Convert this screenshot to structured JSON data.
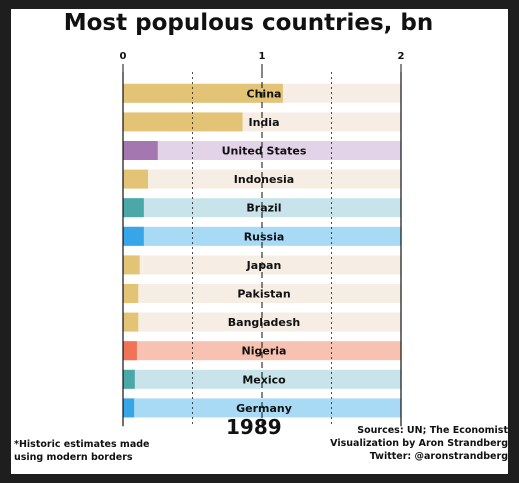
{
  "chart_data": {
    "type": "bar",
    "title": "Most populous countries, bn",
    "xlim": [
      0,
      2
    ],
    "x_ticks": [
      "0",
      "1",
      "2"
    ],
    "orientation": "horizontal",
    "categories": [
      "China",
      "India",
      "United States",
      "Indonesia",
      "Brazil",
      "Russia",
      "Japan",
      "Pakistan",
      "Bangladesh",
      "Nigeria",
      "Mexico",
      "Germany"
    ],
    "values": [
      1.15,
      0.86,
      0.25,
      0.18,
      0.15,
      0.15,
      0.12,
      0.11,
      0.11,
      0.1,
      0.085,
      0.08
    ],
    "colors": [
      "#e3c476",
      "#e3c476",
      "#a577b0",
      "#e3c476",
      "#4aa8a8",
      "#37a6e8",
      "#e3c476",
      "#e3c476",
      "#e3c476",
      "#f07357",
      "#4aa8a8",
      "#37a6e8"
    ],
    "track_colors": [
      "#f6eee5",
      "#f6eee5",
      "#e3d3e8",
      "#f6eee5",
      "#c8e4ea",
      "#a8d9f5",
      "#f6eee5",
      "#f6eee5",
      "#f6eee5",
      "#f7c2b1",
      "#c8e4ea",
      "#a8d9f5"
    ],
    "grid": "dashed vertical gridlines"
  },
  "year": "1989",
  "footnote": [
    "*Historic estimates made",
    "using modern borders"
  ],
  "sources": [
    "Sources: UN; The Economist",
    "Visualization by Aron Strandberg",
    "Twitter: @aronstrandberg"
  ]
}
